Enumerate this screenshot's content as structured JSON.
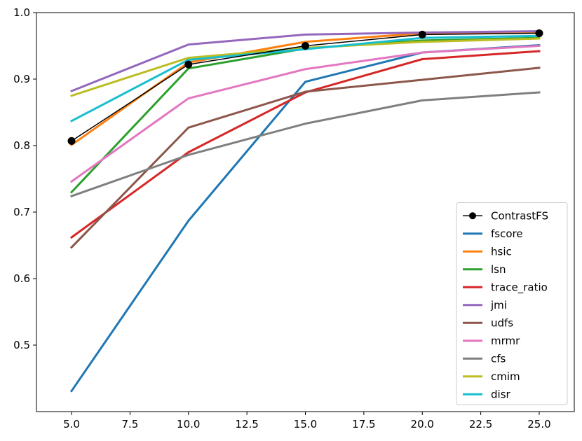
{
  "chart_data": {
    "type": "line",
    "title": "",
    "xlabel": "",
    "ylabel": "",
    "x": [
      5,
      10,
      15,
      20,
      25
    ],
    "xlim": [
      3.5,
      26.5
    ],
    "ylim": [
      0.4,
      1.0
    ],
    "xticks": [
      5.0,
      7.5,
      10.0,
      12.5,
      15.0,
      17.5,
      20.0,
      22.5,
      25.0
    ],
    "xtick_labels": [
      "5.0",
      "7.5",
      "10.0",
      "12.5",
      "15.0",
      "17.5",
      "20.0",
      "22.5",
      "25.0"
    ],
    "yticks": [
      0.5,
      0.6,
      0.7,
      0.8,
      0.9,
      1.0
    ],
    "ytick_labels": [
      "0.5",
      "0.6",
      "0.7",
      "0.8",
      "0.9",
      "1.0"
    ],
    "grid": false,
    "legend_position": "lower-right",
    "series": [
      {
        "name": "ContrastFS",
        "color": "#000000",
        "marker": "circle",
        "values": [
          0.807,
          0.922,
          0.95,
          0.967,
          0.969
        ]
      },
      {
        "name": "fscore",
        "color": "#1f77b4",
        "values": [
          0.431,
          0.687,
          0.896,
          0.94,
          0.951
        ]
      },
      {
        "name": "hsic",
        "color": "#ff7f0e",
        "values": [
          0.801,
          0.925,
          0.956,
          0.969,
          0.971
        ]
      },
      {
        "name": "lsn",
        "color": "#2ca02c",
        "values": [
          0.73,
          0.916,
          0.946,
          0.958,
          0.962
        ]
      },
      {
        "name": "trace_ratio",
        "color": "#d62728",
        "values": [
          0.662,
          0.79,
          0.88,
          0.93,
          0.942
        ]
      },
      {
        "name": "jmi",
        "color": "#9467bd",
        "values": [
          0.882,
          0.952,
          0.967,
          0.97,
          0.972
        ]
      },
      {
        "name": "udfs",
        "color": "#8c564b",
        "values": [
          0.647,
          0.827,
          0.881,
          0.899,
          0.917
        ]
      },
      {
        "name": "mrmr",
        "color": "#e377c2",
        "values": [
          0.746,
          0.871,
          0.915,
          0.94,
          0.95
        ]
      },
      {
        "name": "cfs",
        "color": "#7f7f7f",
        "values": [
          0.724,
          0.786,
          0.833,
          0.868,
          0.88
        ]
      },
      {
        "name": "cmim",
        "color": "#bcbd22",
        "values": [
          0.875,
          0.932,
          0.947,
          0.956,
          0.961
        ]
      },
      {
        "name": "disr",
        "color": "#17becf",
        "values": [
          0.837,
          0.929,
          0.945,
          0.962,
          0.965
        ]
      }
    ]
  }
}
